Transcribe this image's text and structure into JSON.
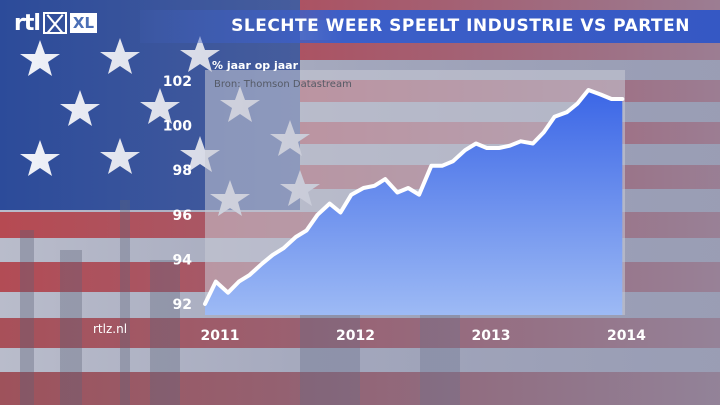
{
  "broadcaster": {
    "logo_text": "rtl",
    "logo_sub": "XL"
  },
  "headline": "SLECHTE WEER SPEELT INDUSTRIE VS PARTEN",
  "website": "rtlz.nl",
  "colors": {
    "headline_bar": "#3558c4",
    "area_top": "#3b66e6",
    "area_bottom": "#9dbaf5",
    "line": "#ffffff",
    "flag_red": "#c23c44"
  },
  "chart_data": {
    "type": "area",
    "title": "",
    "ylabel": "% jaar op jaar",
    "source": "Bron: Thomson Datastream",
    "ylim": [
      91.5,
      102.5
    ],
    "xlim": [
      2011.0,
      2014.1
    ],
    "y_ticks": [
      "92",
      "94",
      "96",
      "98",
      "100",
      "102"
    ],
    "x_ticks": [
      "2011",
      "2012",
      "2013",
      "2014"
    ],
    "grid": false,
    "series": [
      {
        "x": [
          2011.0,
          2011.08,
          2011.17,
          2011.25,
          2011.33,
          2011.42,
          2011.5,
          2011.58,
          2011.67,
          2011.75,
          2011.83,
          2011.92,
          2012.0,
          2012.08,
          2012.17,
          2012.25,
          2012.33,
          2012.42,
          2012.5,
          2012.58,
          2012.67,
          2012.75,
          2012.83,
          2012.92,
          2013.0,
          2013.08,
          2013.17,
          2013.25,
          2013.33,
          2013.42,
          2013.5,
          2013.58,
          2013.67,
          2013.75,
          2013.83,
          2013.92,
          2014.0,
          2014.08
        ],
        "values": [
          92.0,
          93.0,
          92.5,
          93.0,
          93.3,
          93.8,
          94.2,
          94.5,
          95.0,
          95.3,
          96.0,
          96.5,
          96.1,
          96.9,
          97.2,
          97.3,
          97.6,
          97.0,
          97.2,
          96.9,
          98.2,
          98.2,
          98.4,
          98.9,
          99.2,
          99.0,
          99.0,
          99.1,
          99.3,
          99.2,
          99.7,
          100.4,
          100.6,
          101.0,
          101.6,
          101.4,
          101.2,
          101.2
        ]
      }
    ]
  }
}
